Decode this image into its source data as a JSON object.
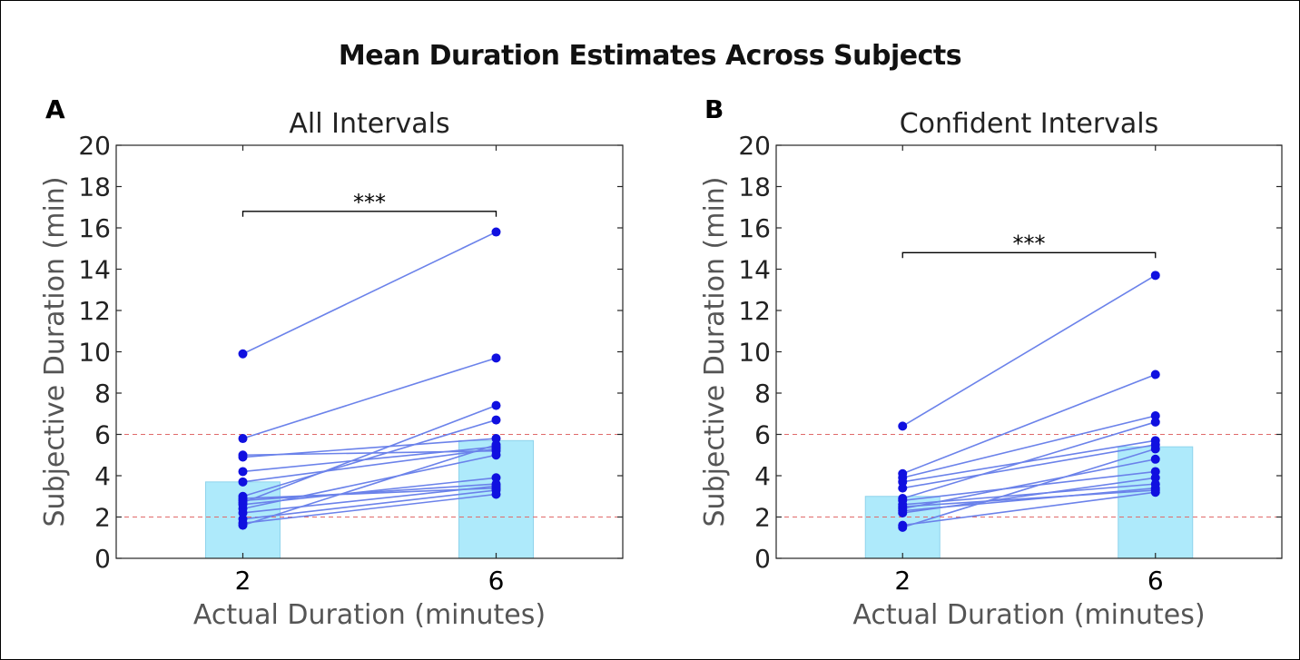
{
  "figure_title": "Mean Duration Estimates Across Subjects",
  "panel_letters": [
    "A",
    "B"
  ],
  "colors": {
    "bar_fill": "#aeeafb",
    "bar_edge": "#8fd3ec",
    "line": "#6b82ea",
    "marker": "#1010e0",
    "reference_line": "#e06a6a",
    "significance": "#000000"
  },
  "chart_data": [
    {
      "type": "bar",
      "title": "All Intervals",
      "xlabel": "Actual Duration (minutes)",
      "ylabel": "Subjective Duration (min)",
      "categories": [
        "2",
        "6"
      ],
      "x": [
        2,
        6
      ],
      "xlim": [
        0,
        8
      ],
      "ylim": [
        0,
        20
      ],
      "yticks": [
        0,
        2,
        4,
        6,
        8,
        10,
        12,
        14,
        16,
        18,
        20
      ],
      "bar_values": [
        3.7,
        5.7
      ],
      "reference_lines": [
        2,
        6
      ],
      "significance": {
        "label": "***",
        "y": 16.8
      },
      "subjects": [
        [
          9.9,
          15.8
        ],
        [
          5.8,
          9.7
        ],
        [
          5.0,
          5.2
        ],
        [
          4.9,
          5.8
        ],
        [
          4.2,
          5.4
        ],
        [
          3.7,
          5.3
        ],
        [
          3.0,
          6.7
        ],
        [
          2.9,
          3.4
        ],
        [
          2.8,
          3.6
        ],
        [
          2.7,
          7.4
        ],
        [
          2.6,
          3.9
        ],
        [
          2.4,
          5.0
        ],
        [
          2.2,
          3.5
        ],
        [
          1.9,
          3.3
        ],
        [
          1.7,
          3.1
        ],
        [
          1.6,
          5.5
        ]
      ]
    },
    {
      "type": "bar",
      "title": "Confident Intervals",
      "xlabel": "Actual Duration (minutes)",
      "ylabel": "Subjective Duration (min)",
      "categories": [
        "2",
        "6"
      ],
      "x": [
        2,
        6
      ],
      "xlim": [
        0,
        8
      ],
      "ylim": [
        0,
        20
      ],
      "yticks": [
        0,
        2,
        4,
        6,
        8,
        10,
        12,
        14,
        16,
        18,
        20
      ],
      "bar_values": [
        3.0,
        5.4
      ],
      "reference_lines": [
        2,
        6
      ],
      "significance": {
        "label": "***",
        "y": 14.8
      },
      "subjects": [
        [
          6.4,
          13.7
        ],
        [
          4.1,
          8.9
        ],
        [
          3.9,
          6.9
        ],
        [
          3.7,
          5.7
        ],
        [
          3.4,
          5.5
        ],
        [
          2.9,
          6.6
        ],
        [
          2.8,
          4.2
        ],
        [
          2.6,
          3.6
        ],
        [
          2.5,
          3.3
        ],
        [
          2.4,
          4.8
        ],
        [
          2.3,
          3.4
        ],
        [
          2.2,
          3.9
        ],
        [
          1.6,
          3.2
        ],
        [
          1.5,
          5.3
        ]
      ]
    }
  ]
}
